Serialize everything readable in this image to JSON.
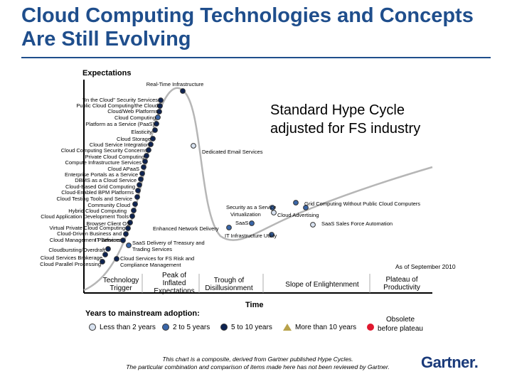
{
  "slide": {
    "title": "Cloud Computing Technologies and Concepts Are Still Evolving",
    "subtitle": "Standard Hype Cycle adjusted for FS industry",
    "as_of": "As of September 2010"
  },
  "axes": {
    "y_label": "Expectations",
    "x_label": "Time"
  },
  "phases": [
    {
      "id": "trigger",
      "lines": [
        "Technology",
        "Trigger"
      ]
    },
    {
      "id": "peak",
      "lines": [
        "Peak of",
        "Inflated",
        "Expectations"
      ]
    },
    {
      "id": "trough",
      "lines": [
        "Trough of",
        "Disillusionment"
      ]
    },
    {
      "id": "slope",
      "lines": [
        "Slope of Enlightenment"
      ]
    },
    {
      "id": "plateau",
      "lines": [
        "Plateau of",
        "Productivity"
      ]
    }
  ],
  "technologies": [
    {
      "name": "Real-Time Infrastructure",
      "years": "5to10"
    },
    {
      "name": "\"In the Cloud\" Security Services",
      "years": "5to10"
    },
    {
      "name": "Public Cloud Computing/the Cloud",
      "years": "5to10"
    },
    {
      "name": "Cloud/Web Platforms",
      "years": "5to10"
    },
    {
      "name": "Cloud Computing",
      "years": "2to5"
    },
    {
      "name": "Platform as a Service (PaaS)",
      "years": "5to10"
    },
    {
      "name": "Elasticity",
      "years": "5to10"
    },
    {
      "name": "Cloud Storage",
      "years": "5to10"
    },
    {
      "name": "Cloud Service Integration",
      "years": "5to10"
    },
    {
      "name": "Cloud Computing Security Concerns",
      "years": "5to10"
    },
    {
      "name": "Private Cloud Computing",
      "years": "5to10"
    },
    {
      "name": "Compute Infrastructure Services",
      "years": "5to10"
    },
    {
      "name": "Cloud APaaS",
      "years": "5to10"
    },
    {
      "name": "Enterprise Portals as a Service",
      "years": "5to10"
    },
    {
      "name": "DBMS as a Cloud Service",
      "years": "5to10"
    },
    {
      "name": "Cloud-Based Grid Computing",
      "years": "5to10"
    },
    {
      "name": "Cloud-Enabled BPM Platforms",
      "years": "5to10"
    },
    {
      "name": "Cloud Testing Tools and Service",
      "years": "5to10"
    },
    {
      "name": "Community Cloud",
      "years": "5to10"
    },
    {
      "name": "Hybrid Cloud Computing",
      "years": "5to10"
    },
    {
      "name": "Cloud Application Development Tools",
      "years": "5to10"
    },
    {
      "name": "Browser Client OS",
      "years": "5to10"
    },
    {
      "name": "Virtual Private Cloud Computing",
      "years": "5to10"
    },
    {
      "name": "Cloud-Driven Business and IT Services",
      "years": "5to10"
    },
    {
      "name": "Cloud Management Platforms",
      "years": "5to10"
    },
    {
      "name": "Cloudbursting/Overdraft",
      "years": "5to10"
    },
    {
      "name": "Cloud Services Brokerage",
      "years": "5to10"
    },
    {
      "name": "Cloud Parallel Processing",
      "years": "5to10"
    },
    {
      "name": "SaaS Delivery of Treasury and Trading Services",
      "years": "2to5"
    },
    {
      "name": "Cloud Services for FS Risk and Compliance Management",
      "years": "5to10"
    },
    {
      "name": "Enhanced Network Delivery",
      "years": "2to5"
    },
    {
      "name": "Dedicated Email Services",
      "years": "lt2"
    },
    {
      "name": "Security as a Service",
      "years": "2to5"
    },
    {
      "name": "Virtualization",
      "years": "lt2"
    },
    {
      "name": "Cloud Advertising",
      "years": "2to5"
    },
    {
      "name": "SaaS",
      "years": "2to5"
    },
    {
      "name": "SaaS Sales Force Automation",
      "years": "lt2"
    },
    {
      "name": "IT Infrastructure Utility",
      "years": "2to5"
    },
    {
      "name": "Grid Computing Without Public Cloud Computers",
      "years": "2to5"
    }
  ],
  "legend": {
    "title": "Years to mainstream adoption:",
    "items": [
      {
        "id": "lt2",
        "label": "Less than 2 years",
        "color": "#d8e2f0"
      },
      {
        "id": "2to5",
        "label": "2 to 5 years",
        "color": "#3a66a8"
      },
      {
        "id": "5to10",
        "label": "5 to 10 years",
        "color": "#0d2352"
      },
      {
        "id": "gt10",
        "label": "More than 10 years",
        "color": "#b8a24a"
      },
      {
        "id": "obsolete",
        "label": "Obsolete before plateau",
        "lines": [
          "Obsolete",
          "before plateau"
        ],
        "color": "#e0182e"
      }
    ]
  },
  "footnote": {
    "line1": "This chart is a composite, derived from Gartner published Hype Cycles.",
    "line2": "The particular combination and comparison of items made here has not been reviewed by Gartner."
  },
  "logo": {
    "text": "Gartner."
  }
}
